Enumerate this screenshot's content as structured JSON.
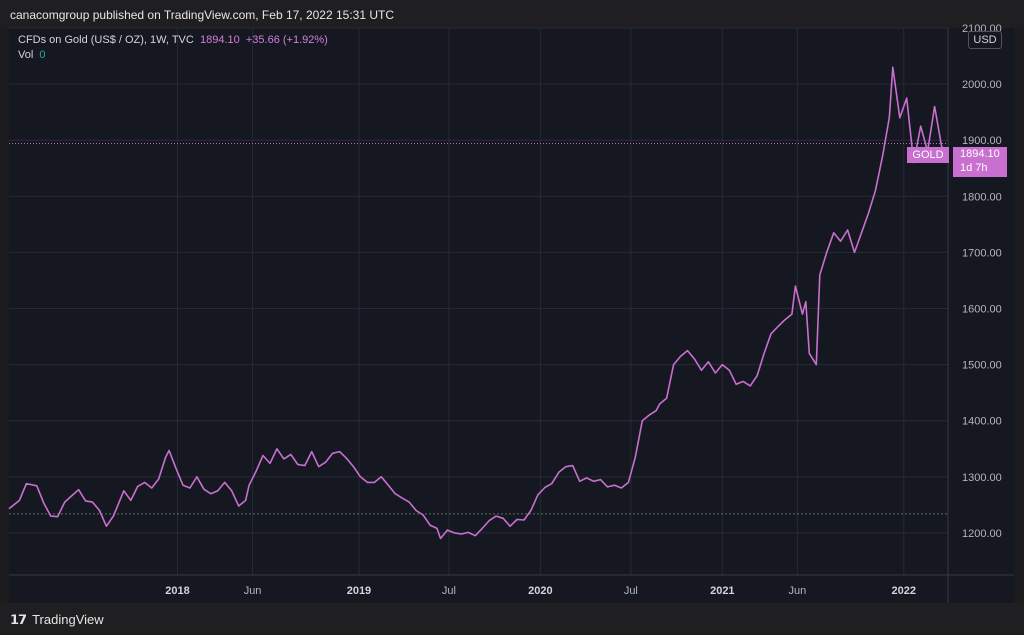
{
  "header": {
    "published": "canacomgroup published on TradingView.com, Feb 17, 2022 15:31 UTC"
  },
  "legend": {
    "symbol": "CFDs on Gold (US$ / OZ), 1W, TVC",
    "last": "1894.10",
    "change": "+35.66 (+1.92%)",
    "vol_label": "Vol",
    "vol_value": "0"
  },
  "currency": "USD",
  "price_tag": {
    "name": "GOLD",
    "value": "1894.10",
    "countdown": "1d 7h"
  },
  "footer": {
    "brand": "TradingView"
  },
  "colors": {
    "line": "#c86fd0",
    "background": "#161821",
    "grid": "#262a36"
  },
  "chart_data": {
    "type": "line",
    "title": "",
    "xlabel": "",
    "ylabel": "",
    "ylim": [
      1125,
      2100
    ],
    "xlim": [
      "2017-01-27",
      "2022-03-31"
    ],
    "x_ticks": [
      {
        "label": "2018",
        "date": "2018-01-01",
        "bold": true
      },
      {
        "label": "Jun",
        "date": "2018-06-01",
        "bold": false
      },
      {
        "label": "2019",
        "date": "2019-01-01",
        "bold": true
      },
      {
        "label": "Jul",
        "date": "2019-07-01",
        "bold": false
      },
      {
        "label": "2020",
        "date": "2020-01-01",
        "bold": true
      },
      {
        "label": "Jul",
        "date": "2020-07-01",
        "bold": false
      },
      {
        "label": "2021",
        "date": "2021-01-01",
        "bold": true
      },
      {
        "label": "Jun",
        "date": "2021-06-01",
        "bold": false
      },
      {
        "label": "2022",
        "date": "2022-01-01",
        "bold": true
      }
    ],
    "y_ticks": [
      "1200.00",
      "1300.00",
      "1400.00",
      "1500.00",
      "1600.00",
      "1700.00",
      "1800.00",
      "1900.00",
      "2000.00",
      "2100.00"
    ],
    "reference_lines": [
      {
        "name": "last-price",
        "value": 1894.1,
        "style": "dotted"
      },
      {
        "name": "start-level",
        "value": 1234,
        "style": "dashed"
      }
    ],
    "series": [
      {
        "values": [
          [
            "2017-01-27",
            1243
          ],
          [
            "2017-02-17",
            1258
          ],
          [
            "2017-03-03",
            1288
          ],
          [
            "2017-03-24",
            1284
          ],
          [
            "2017-04-07",
            1253
          ],
          [
            "2017-04-21",
            1230
          ],
          [
            "2017-05-05",
            1229
          ],
          [
            "2017-05-19",
            1255
          ],
          [
            "2017-06-02",
            1266
          ],
          [
            "2017-06-16",
            1277
          ],
          [
            "2017-06-30",
            1257
          ],
          [
            "2017-07-14",
            1255
          ],
          [
            "2017-07-28",
            1240
          ],
          [
            "2017-08-11",
            1212
          ],
          [
            "2017-08-25",
            1230
          ],
          [
            "2017-09-08",
            1260
          ],
          [
            "2017-09-15",
            1275
          ],
          [
            "2017-09-29",
            1258
          ],
          [
            "2017-10-13",
            1283
          ],
          [
            "2017-10-27",
            1290
          ],
          [
            "2017-11-10",
            1280
          ],
          [
            "2017-11-24",
            1296
          ],
          [
            "2017-12-08",
            1335
          ],
          [
            "2017-12-15",
            1347
          ],
          [
            "2017-12-29",
            1315
          ],
          [
            "2018-01-12",
            1285
          ],
          [
            "2018-01-26",
            1280
          ],
          [
            "2018-02-09",
            1300
          ],
          [
            "2018-02-23",
            1278
          ],
          [
            "2018-03-09",
            1270
          ],
          [
            "2018-03-23",
            1275
          ],
          [
            "2018-04-06",
            1290
          ],
          [
            "2018-04-20",
            1275
          ],
          [
            "2018-05-04",
            1248
          ],
          [
            "2018-05-18",
            1258
          ],
          [
            "2018-05-25",
            1285
          ],
          [
            "2018-06-08",
            1310
          ],
          [
            "2018-06-22",
            1338
          ],
          [
            "2018-07-06",
            1324
          ],
          [
            "2018-07-20",
            1350
          ],
          [
            "2018-08-03",
            1332
          ],
          [
            "2018-08-17",
            1340
          ],
          [
            "2018-08-31",
            1322
          ],
          [
            "2018-09-14",
            1320
          ],
          [
            "2018-09-28",
            1345
          ],
          [
            "2018-10-12",
            1318
          ],
          [
            "2018-10-26",
            1326
          ],
          [
            "2018-11-09",
            1342
          ],
          [
            "2018-11-23",
            1345
          ],
          [
            "2018-12-07",
            1333
          ],
          [
            "2018-12-21",
            1318
          ],
          [
            "2019-01-04",
            1300
          ],
          [
            "2019-01-18",
            1290
          ],
          [
            "2019-02-01",
            1290
          ],
          [
            "2019-02-15",
            1300
          ],
          [
            "2019-03-01",
            1285
          ],
          [
            "2019-03-15",
            1270
          ],
          [
            "2019-03-29",
            1262
          ],
          [
            "2019-04-12",
            1255
          ],
          [
            "2019-04-26",
            1240
          ],
          [
            "2019-05-10",
            1232
          ],
          [
            "2019-05-24",
            1214
          ],
          [
            "2019-06-07",
            1208
          ],
          [
            "2019-06-14",
            1190
          ],
          [
            "2019-06-28",
            1205
          ],
          [
            "2019-07-12",
            1200
          ],
          [
            "2019-07-26",
            1198
          ],
          [
            "2019-08-09",
            1201
          ],
          [
            "2019-08-23",
            1195
          ],
          [
            "2019-09-06",
            1208
          ],
          [
            "2019-09-20",
            1222
          ],
          [
            "2019-10-04",
            1230
          ],
          [
            "2019-10-18",
            1226
          ],
          [
            "2019-11-01",
            1212
          ],
          [
            "2019-11-15",
            1224
          ],
          [
            "2019-11-29",
            1223
          ],
          [
            "2019-12-13",
            1240
          ],
          [
            "2019-12-27",
            1268
          ],
          [
            "2020-01-10",
            1281
          ],
          [
            "2020-01-24",
            1288
          ],
          [
            "2020-02-07",
            1308
          ],
          [
            "2020-02-21",
            1318
          ],
          [
            "2020-03-06",
            1320
          ],
          [
            "2020-03-20",
            1292
          ],
          [
            "2020-04-03",
            1298
          ],
          [
            "2020-04-17",
            1292
          ],
          [
            "2020-05-01",
            1295
          ],
          [
            "2020-05-15",
            1282
          ],
          [
            "2020-05-29",
            1285
          ],
          [
            "2020-06-12",
            1280
          ],
          [
            "2020-06-26",
            1290
          ],
          [
            "2020-07-10",
            1335
          ],
          [
            "2020-07-24",
            1400
          ],
          [
            "2020-08-07",
            1410
          ],
          [
            "2020-08-21",
            1418
          ],
          [
            "2020-08-28",
            1430
          ],
          [
            "2020-09-11",
            1440
          ],
          [
            "2020-09-25",
            1500
          ],
          [
            "2020-10-09",
            1515
          ],
          [
            "2020-10-23",
            1525
          ],
          [
            "2020-11-06",
            1510
          ],
          [
            "2020-11-20",
            1490
          ],
          [
            "2020-12-04",
            1505
          ],
          [
            "2020-12-18",
            1485
          ],
          [
            "2021-01-01",
            1500
          ],
          [
            "2021-01-15",
            1490
          ],
          [
            "2021-01-29",
            1465
          ],
          [
            "2021-02-12",
            1470
          ],
          [
            "2021-02-26",
            1462
          ],
          [
            "2021-03-12",
            1480
          ],
          [
            "2021-03-26",
            1520
          ],
          [
            "2021-04-09",
            1555
          ],
          [
            "2021-04-23",
            1568
          ],
          [
            "2021-05-07",
            1580
          ],
          [
            "2021-05-21",
            1590
          ],
          [
            "2021-05-28",
            1640
          ],
          [
            "2021-06-11",
            1590
          ],
          [
            "2021-06-18",
            1612
          ],
          [
            "2021-06-25",
            1520
          ],
          [
            "2021-07-09",
            1500
          ],
          [
            "2021-07-16",
            1660
          ],
          [
            "2021-07-30",
            1700
          ],
          [
            "2021-08-13",
            1735
          ],
          [
            "2021-08-27",
            1720
          ],
          [
            "2021-09-10",
            1740
          ],
          [
            "2021-09-24",
            1700
          ],
          [
            "2021-10-08",
            1735
          ],
          [
            "2021-10-22",
            1770
          ],
          [
            "2021-11-05",
            1810
          ],
          [
            "2021-11-19",
            1870
          ],
          [
            "2021-12-03",
            1940
          ],
          [
            "2021-12-10",
            2030
          ],
          [
            "2021-12-24",
            1940
          ],
          [
            "2022-01-07",
            1975
          ],
          [
            "2022-01-21",
            1860
          ],
          [
            "2022-02-04",
            1925
          ],
          [
            "2022-02-18",
            1880
          ],
          [
            "2022-03-04",
            1960
          ],
          [
            "2022-03-18",
            1890
          ],
          [
            "2022-03-31",
            1870
          ]
        ]
      }
    ]
  }
}
